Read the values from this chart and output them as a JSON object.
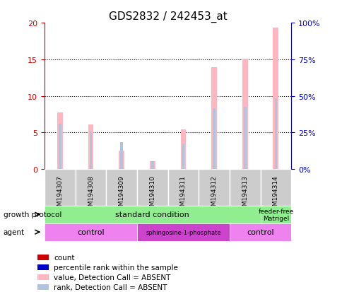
{
  "title": "GDS2832 / 242453_at",
  "samples": [
    "GSM194307",
    "GSM194308",
    "GSM194309",
    "GSM194310",
    "GSM194311",
    "GSM194312",
    "GSM194313",
    "GSM194314"
  ],
  "value_absent": [
    7.7,
    6.1,
    2.5,
    1.1,
    5.4,
    13.9,
    15.1,
    19.3
  ],
  "rank_absent_pct": [
    31,
    25.5,
    18.5,
    5.5,
    17.5,
    41.5,
    42.5,
    48.5
  ],
  "ylim_left": [
    0,
    20
  ],
  "ylim_right": [
    0,
    100
  ],
  "yticks_left": [
    0,
    5,
    10,
    15,
    20
  ],
  "yticks_right": [
    0,
    25,
    50,
    75,
    100
  ],
  "ytick_labels_right": [
    "0%",
    "25%",
    "50%",
    "75%",
    "100%"
  ],
  "bar_color_absent": "#FFB6C1",
  "rank_color_absent": "#B0C4DE",
  "legend_items": [
    {
      "color": "#CC0000",
      "label": "count"
    },
    {
      "color": "#0000CC",
      "label": "percentile rank within the sample"
    },
    {
      "color": "#FFB6C1",
      "label": "value, Detection Call = ABSENT"
    },
    {
      "color": "#B0C4DE",
      "label": "rank, Detection Call = ABSENT"
    }
  ],
  "left_axis_color": "#CC0000",
  "right_axis_color": "#0000CC",
  "sample_box_color": "#CCCCCC",
  "grid_color": "#000000",
  "title_fontsize": 11,
  "tick_fontsize": 8,
  "label_fontsize": 8
}
